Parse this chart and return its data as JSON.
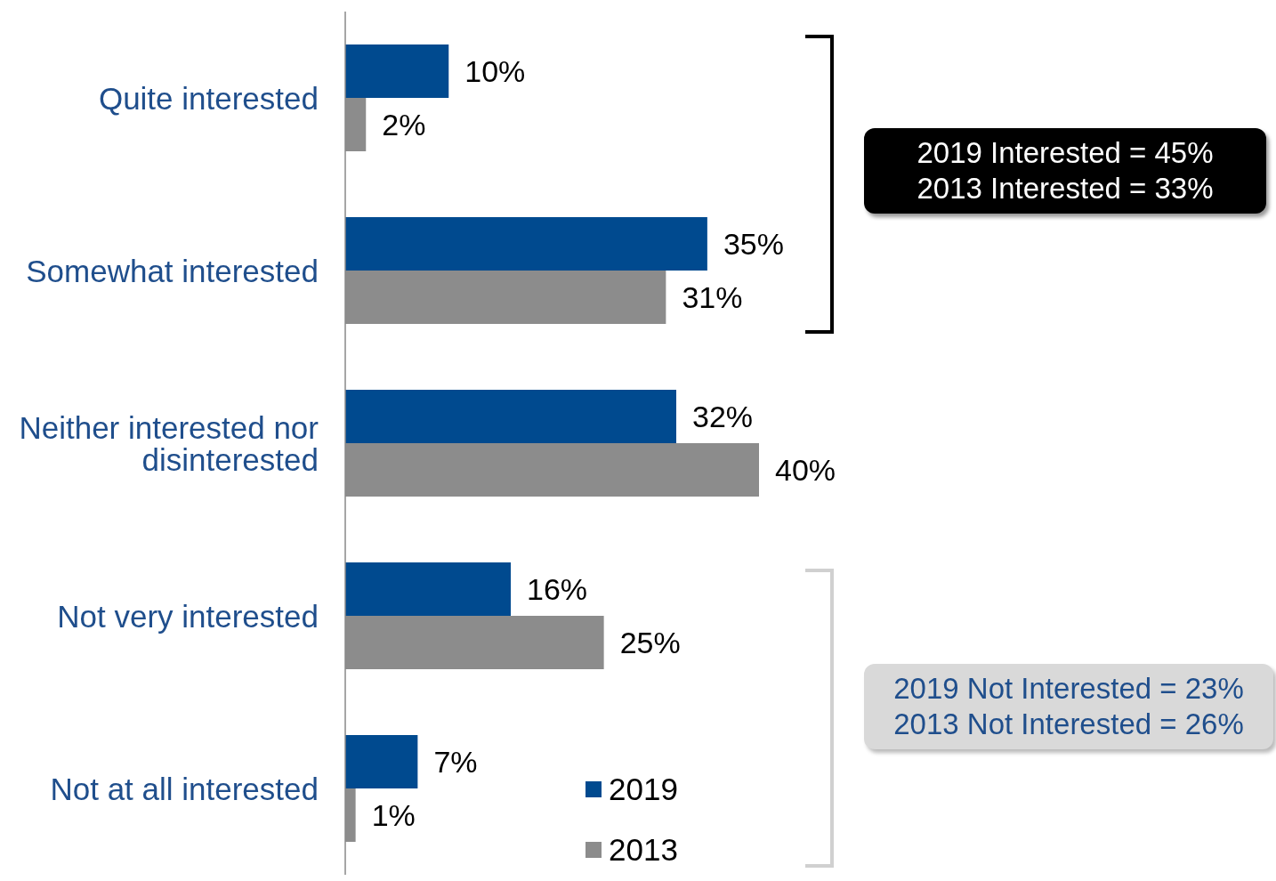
{
  "chart_data": {
    "type": "bar",
    "orientation": "horizontal",
    "categories": [
      "Quite interested",
      "Somewhat interested",
      "Neither interested nor disinterested",
      "Not very interested",
      "Not at all interested"
    ],
    "series": [
      {
        "name": "2019",
        "color": "#004a8f",
        "values": [
          10,
          35,
          32,
          16,
          7
        ],
        "value_labels": [
          "10%",
          "35%",
          "32%",
          "16%",
          "7%"
        ]
      },
      {
        "name": "2013",
        "color": "#8c8c8c",
        "values": [
          2,
          31,
          40,
          25,
          1
        ],
        "value_labels": [
          "2%",
          "31%",
          "40%",
          "25%",
          "1%"
        ]
      }
    ],
    "annotations": [
      "2019 Interested = 45%",
      "2013 Interested = 33%",
      "2019 Not Interested = 23%",
      "2013 Not Interested = 26%"
    ],
    "legend": "bottom",
    "grid": false
  }
}
